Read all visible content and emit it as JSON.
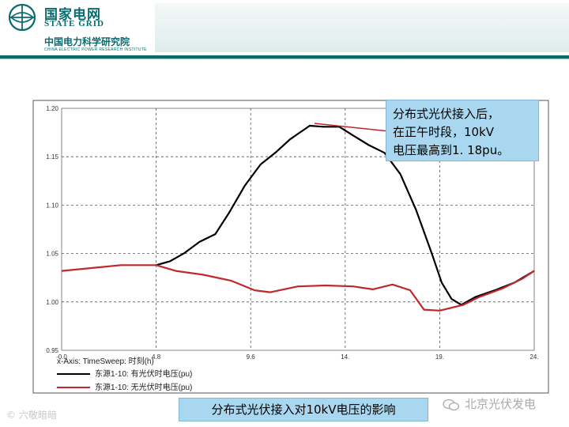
{
  "header": {
    "brand_cn": "国家电网",
    "brand_en": "STATE GRID",
    "sub_cn": "中国电力科学研究院",
    "sub_en": "CHINA ELECTRIC POWER RESEARCH INSTITUTE"
  },
  "callout": {
    "line1": "分布式光伏接入后，",
    "line2": "在正午时段，10kV",
    "line3": "电压最高到1. 18pu。"
  },
  "caption": "分布式光伏接入对10kV电压的影响",
  "watermark_left": "© 六敬暗暗",
  "watermark_right": "北京光伏发电",
  "legend": {
    "x_axis": "x-Axis: TimeSweep: 时刻(h)",
    "series1": "东源1-10: 有光伏时电压(pu)",
    "series2": "东源1-10: 无光伏时电压(pu)"
  },
  "colors": {
    "brand": "#0a6b6e",
    "series1": "#000000",
    "series2": "#c0282d",
    "callout_bg": "#a9d7ef"
  },
  "chart_data": {
    "type": "line",
    "xlim": [
      0,
      24
    ],
    "ylim": [
      0.95,
      1.2
    ],
    "x_ticks": [
      "-0.0",
      "4.8",
      "9.6",
      "14.",
      "19.",
      "24."
    ],
    "x_tick_values": [
      0,
      4.8,
      9.6,
      14.4,
      19.2,
      24
    ],
    "y_ticks": [
      "0.95",
      "1.00",
      "1.05",
      "1.10",
      "1.15",
      "1.20"
    ],
    "y_tick_values": [
      0.95,
      1.0,
      1.05,
      1.1,
      1.15,
      1.2
    ],
    "grid": true,
    "legend_position": "bottom-left",
    "series": [
      {
        "name": "东源1-10: 有光伏时电压(pu)",
        "x": [
          4.8,
          5.5,
          6.2,
          7,
          7.8,
          8.5,
          9.3,
          10.1,
          10.9,
          11.6,
          12.6,
          13.3,
          14.1,
          14.8,
          15.6,
          16.4,
          17.2,
          18,
          18.8,
          19.3,
          19.8,
          20.3,
          21,
          22,
          23,
          24
        ],
        "y": [
          1.038,
          1.042,
          1.05,
          1.062,
          1.07,
          1.092,
          1.12,
          1.142,
          1.155,
          1.168,
          1.182,
          1.181,
          1.181,
          1.172,
          1.162,
          1.154,
          1.132,
          1.095,
          1.05,
          1.02,
          1.003,
          0.997,
          1.005,
          1.012,
          1.02,
          1.032
        ]
      },
      {
        "name": "东源1-10: 无光伏时电压(pu)",
        "x": [
          0,
          1.5,
          3,
          4.8,
          5.8,
          7.2,
          8.6,
          9.8,
          10.6,
          12,
          13.4,
          14.8,
          15.8,
          16.8,
          17.7,
          18.4,
          19.2,
          20.4,
          21.2,
          22.4,
          23.4,
          24
        ],
        "y": [
          1.032,
          1.035,
          1.038,
          1.038,
          1.032,
          1.028,
          1.022,
          1.012,
          1.01,
          1.016,
          1.017,
          1.016,
          1.013,
          1.018,
          1.012,
          0.992,
          0.991,
          0.997,
          1.005,
          1.014,
          1.024,
          1.032
        ]
      }
    ]
  }
}
